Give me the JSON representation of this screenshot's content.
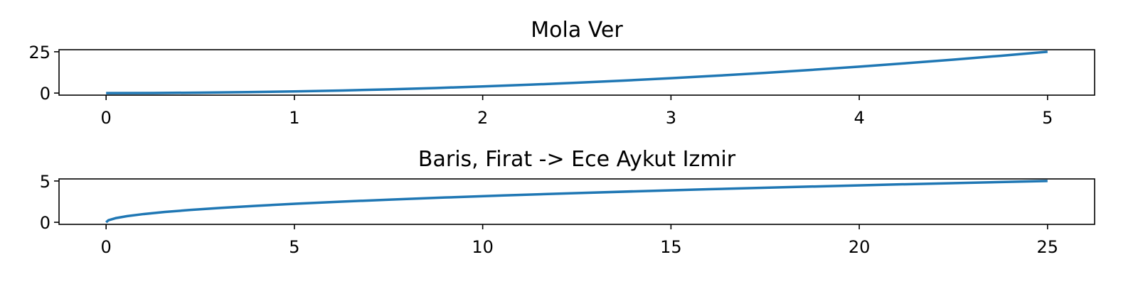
{
  "chart_data": [
    {
      "type": "line",
      "title": "Mola Ver",
      "xlabel": "",
      "ylabel": "",
      "xlim": [
        -0.25,
        5.25
      ],
      "ylim": [
        -1.25,
        26.25
      ],
      "xticks": [
        0,
        1,
        2,
        3,
        4,
        5
      ],
      "yticks": [
        0,
        25
      ],
      "grid": false,
      "series": [
        {
          "color": "#1f77b4",
          "x": [
            0,
            0.25,
            0.5,
            0.75,
            1,
            1.25,
            1.5,
            1.75,
            2,
            2.25,
            2.5,
            2.75,
            3,
            3.25,
            3.5,
            3.75,
            4,
            4.25,
            4.5,
            4.75,
            5
          ],
          "y": [
            0,
            0.0625,
            0.25,
            0.5625,
            1,
            1.5625,
            2.25,
            3.0625,
            4,
            5.0625,
            6.25,
            7.5625,
            9,
            10.5625,
            12.25,
            14.0625,
            16,
            18.0625,
            20.25,
            22.5625,
            25
          ]
        }
      ]
    },
    {
      "type": "line",
      "title": "Baris, Firat -> Ece Aykut Izmir",
      "xlabel": "",
      "ylabel": "",
      "xlim": [
        -1.25,
        26.25
      ],
      "ylim": [
        -0.25,
        5.25
      ],
      "xticks": [
        0,
        5,
        10,
        15,
        20,
        25
      ],
      "yticks": [
        0,
        5
      ],
      "grid": false,
      "series": [
        {
          "color": "#1f77b4",
          "x": [
            0,
            0.0625,
            0.25,
            0.5625,
            1,
            1.5625,
            2.25,
            3.0625,
            4,
            5.0625,
            6.25,
            7.5625,
            9,
            10.5625,
            12.25,
            14.0625,
            16,
            18.0625,
            20.25,
            22.5625,
            25
          ],
          "y": [
            0,
            0.25,
            0.5,
            0.75,
            1,
            1.25,
            1.5,
            1.75,
            2,
            2.25,
            2.5,
            2.75,
            3,
            3.25,
            3.5,
            3.75,
            4,
            4.25,
            4.5,
            4.75,
            5
          ]
        }
      ]
    }
  ]
}
